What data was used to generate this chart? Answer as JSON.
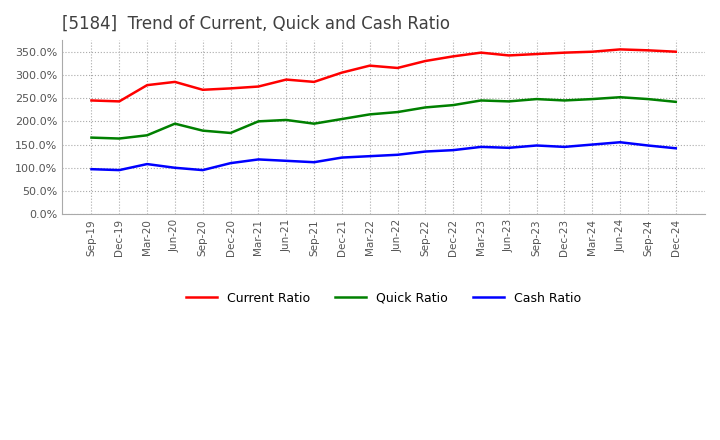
{
  "title": "[5184]  Trend of Current, Quick and Cash Ratio",
  "x_labels": [
    "Sep-19",
    "Dec-19",
    "Mar-20",
    "Jun-20",
    "Sep-20",
    "Dec-20",
    "Mar-21",
    "Jun-21",
    "Sep-21",
    "Dec-21",
    "Mar-22",
    "Jun-22",
    "Sep-22",
    "Dec-22",
    "Mar-23",
    "Jun-23",
    "Sep-23",
    "Dec-23",
    "Mar-24",
    "Jun-24",
    "Sep-24",
    "Dec-24"
  ],
  "current_ratio": [
    245,
    243,
    278,
    285,
    268,
    271,
    275,
    290,
    285,
    305,
    320,
    315,
    330,
    340,
    348,
    342,
    345,
    348,
    350,
    355,
    353,
    350
  ],
  "quick_ratio": [
    165,
    163,
    170,
    195,
    180,
    175,
    200,
    203,
    195,
    205,
    215,
    220,
    230,
    235,
    245,
    243,
    248,
    245,
    248,
    252,
    248,
    242
  ],
  "cash_ratio": [
    97,
    95,
    108,
    100,
    95,
    110,
    118,
    115,
    112,
    122,
    125,
    128,
    135,
    138,
    145,
    143,
    148,
    145,
    150,
    155,
    148,
    142
  ],
  "current_color": "#ff0000",
  "quick_color": "#008000",
  "cash_color": "#0000ff",
  "ylim": [
    0,
    375
  ],
  "yticks": [
    0,
    50,
    100,
    150,
    200,
    250,
    300,
    350
  ],
  "background_color": "#ffffff",
  "grid_color": "#aaaaaa",
  "title_fontsize": 12,
  "line_width": 1.8
}
